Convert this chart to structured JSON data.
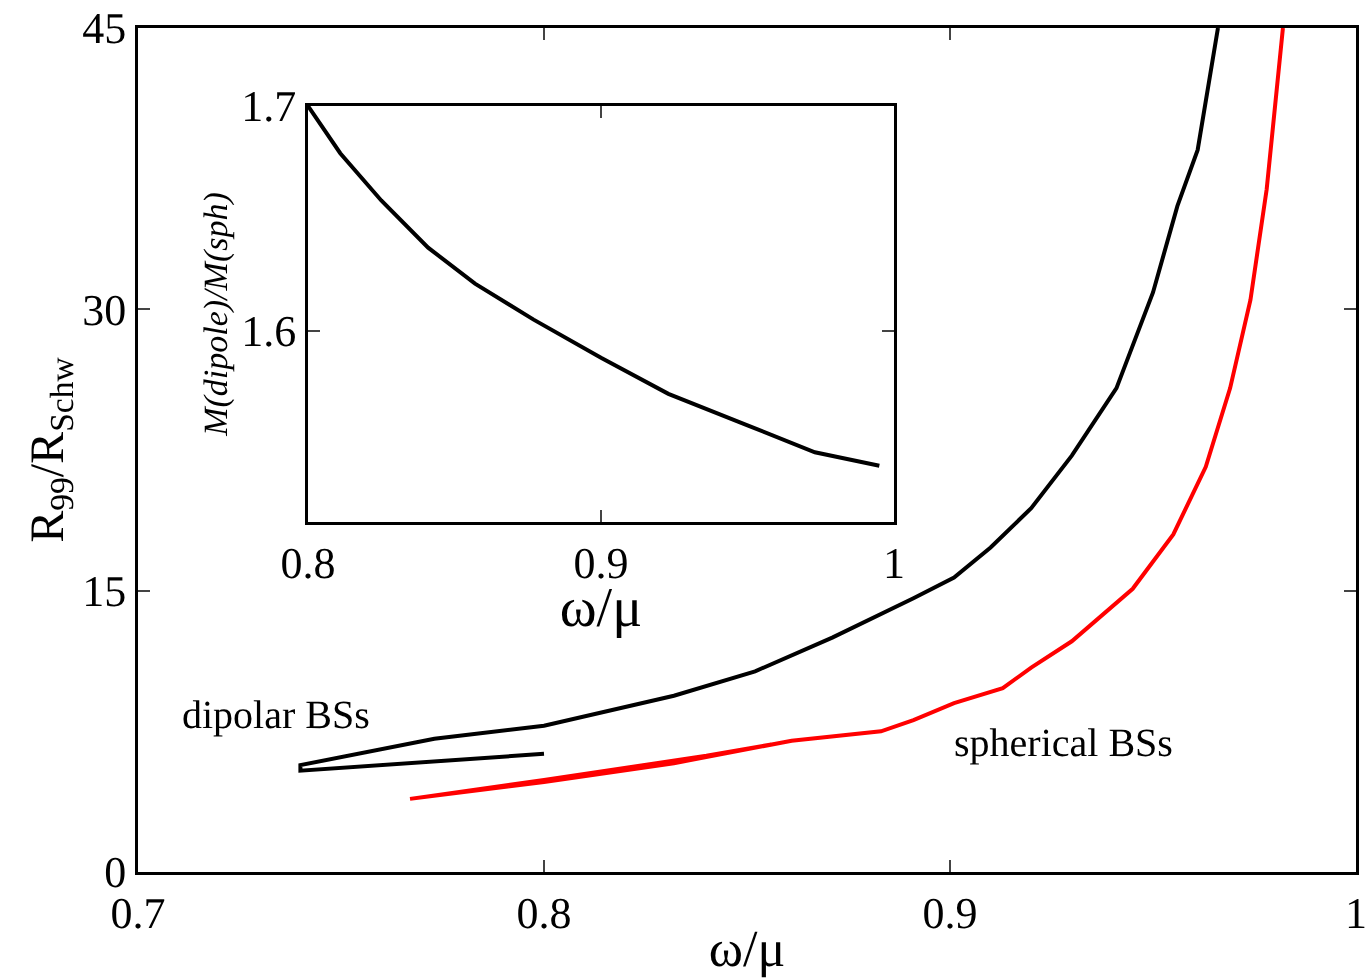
{
  "chart_data": [
    {
      "type": "line",
      "xlabel": "ω/μ",
      "ylabel": "R$_{99}$/R$_{Schw}$",
      "xlim": [
        0.7,
        1
      ],
      "ylim": [
        0,
        45
      ],
      "xticks": [
        0.7,
        0.8,
        0.9,
        1
      ],
      "yticks": [
        0,
        15,
        30,
        45
      ],
      "grid": false,
      "marker": "none",
      "line_style": "solid",
      "series": [
        {
          "color": "#000000",
          "x": [
            0.966,
            0.961,
            0.956,
            0.95,
            0.941,
            0.93,
            0.92,
            0.91,
            0.901,
            0.891,
            0.871,
            0.852,
            0.832,
            0.8,
            0.773,
            0.74,
            0.74,
            0.8
          ],
          "values": [
            45,
            38.5,
            35.5,
            30.9,
            25.8,
            22.2,
            19.4,
            17.3,
            15.7,
            14.6,
            12.5,
            10.7,
            9.4,
            7.8,
            7.1,
            5.7,
            5.4,
            6.3
          ]
        },
        {
          "color": "#ff0000",
          "x": [
            0.982,
            0.978,
            0.974,
            0.969,
            0.963,
            0.955,
            0.945,
            0.93,
            0.92,
            0.913,
            0.901,
            0.891,
            0.883,
            0.861,
            0.832,
            0.8,
            0.767,
            0.8,
            0.84,
            0.856
          ],
          "values": [
            45,
            36.4,
            30.5,
            25.8,
            21.6,
            18,
            15.1,
            12.3,
            10.9,
            9.8,
            9,
            8.1,
            7.5,
            7,
            5.8,
            4.8,
            3.9,
            4.9,
            6.2,
            6.8
          ]
        }
      ],
      "annotations": [
        "dipolar BSs",
        "spherical BSs"
      ]
    },
    {
      "type": "line",
      "xlabel": "ω/μ",
      "ylabel": "M(dipole)/M(sph)",
      "xlim": [
        0.8,
        1
      ],
      "ylim": [
        1.515,
        1.7
      ],
      "xticks": [
        0.8,
        0.9,
        1
      ],
      "yticks": [
        1.6,
        1.7
      ],
      "grid": false,
      "marker": "none",
      "line_style": "solid",
      "series": [
        {
          "color": "#000000",
          "x": [
            0.8,
            0.811,
            0.825,
            0.841,
            0.857,
            0.877,
            0.9,
            0.923,
            0.95,
            0.973,
            0.995
          ],
          "values": [
            1.7,
            1.679,
            1.658,
            1.637,
            1.621,
            1.605,
            1.588,
            1.572,
            1.558,
            1.546,
            1.54
          ]
        }
      ]
    }
  ]
}
